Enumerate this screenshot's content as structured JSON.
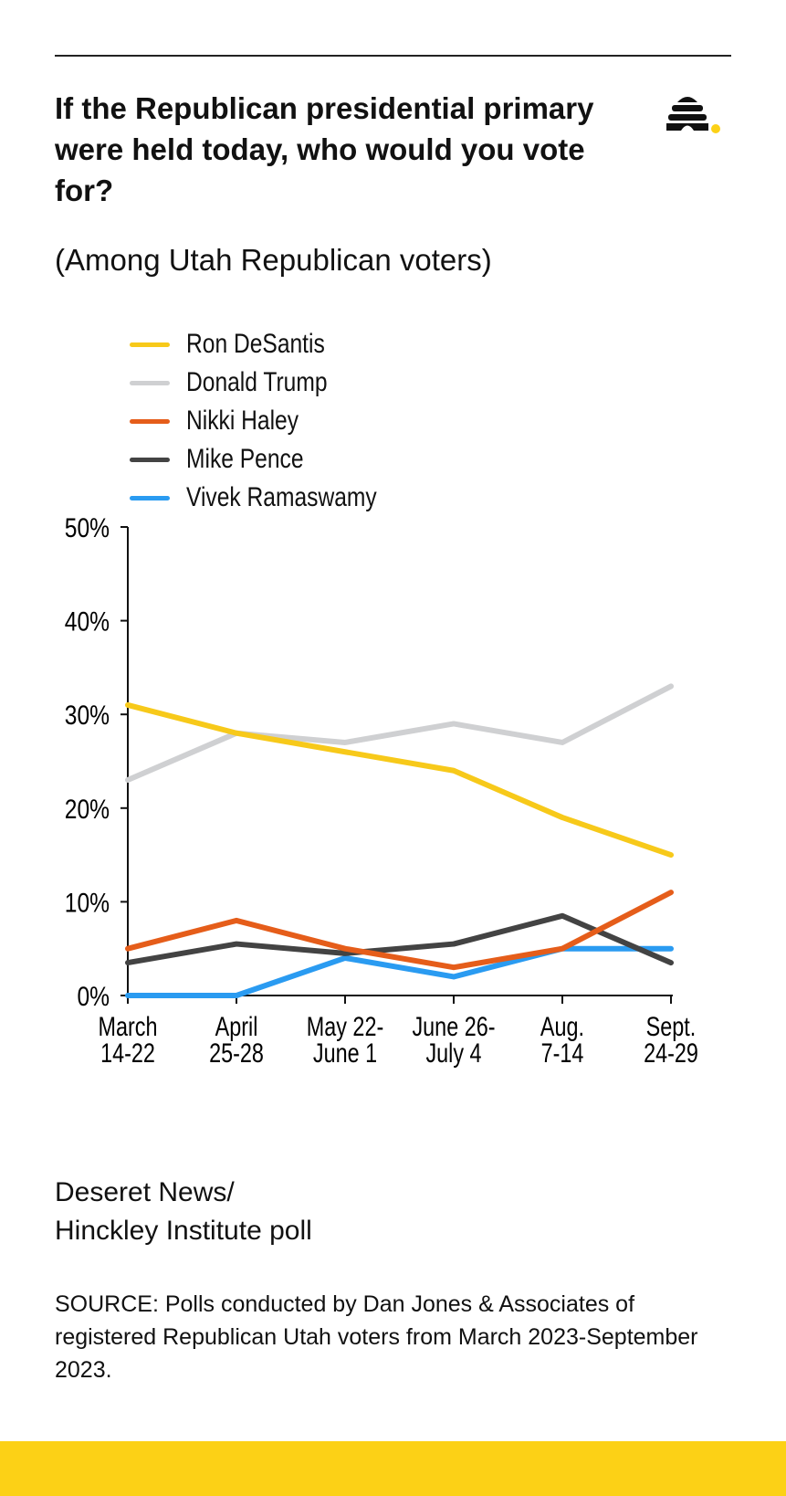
{
  "header": {
    "title": "If the Republican presidential primary were held today, who would you vote for?",
    "subtitle": "(Among Utah Republican voters)",
    "logo": "Deseret News beehive logo"
  },
  "chart_data": {
    "type": "line",
    "title": "If the Republican presidential primary were held today, who would you vote for?",
    "subtitle": "(Among Utah Republican voters)",
    "categories": [
      [
        "March",
        "14-22"
      ],
      [
        "April",
        "25-28"
      ],
      [
        "May 22-",
        "June 1"
      ],
      [
        "June 26-",
        "July 4"
      ],
      [
        "Aug.",
        "7-14"
      ],
      [
        "Sept.",
        "24-29"
      ]
    ],
    "y_ticks": [
      "0%",
      "10%",
      "20%",
      "30%",
      "40%",
      "50%"
    ],
    "ylim": [
      0,
      50
    ],
    "grid": false,
    "legend_placement": "top-left",
    "series": [
      {
        "name": "Ron DeSantis",
        "color": "#f7c91a",
        "values": [
          31,
          28,
          26,
          24,
          19,
          15
        ]
      },
      {
        "name": "Donald Trump",
        "color": "#cfd0d2",
        "values": [
          23,
          28,
          27,
          29,
          27,
          33
        ]
      },
      {
        "name": "Nikki Haley",
        "color": "#e55d1a",
        "values": [
          5,
          8,
          5,
          3,
          5,
          11
        ]
      },
      {
        "name": "Mike Pence",
        "color": "#434343",
        "values": [
          3.5,
          5.5,
          4.5,
          5.5,
          8.5,
          3.5
        ]
      },
      {
        "name": "Vivek Ramaswamy",
        "color": "#2a9bf1",
        "values": [
          0,
          0,
          4,
          2,
          5,
          5
        ]
      }
    ]
  },
  "source_name": [
    "Deseret News/",
    "Hinckley Institute poll"
  ],
  "note": "SOURCE: Polls conducted by Dan Jones & Associates of registered Republican Utah voters from March 2023-September 2023.",
  "colors": {
    "accent": "#fcd116"
  }
}
